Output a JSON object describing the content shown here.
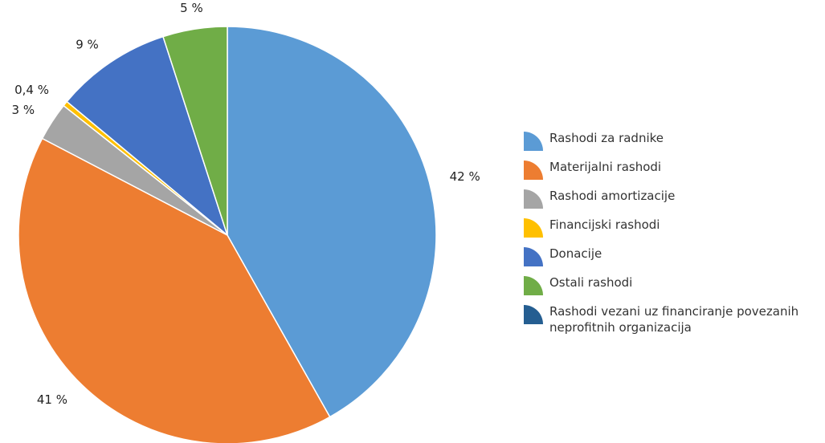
{
  "chart_data": {
    "type": "pie",
    "categories": [
      "Rashodi za radnike",
      "Materijalni rashodi",
      "Rashodi amortizacije",
      "Financijski rashodi",
      "Donacije",
      "Ostali rashodi",
      "Rashodi vezani uz financiranje povezanih neprofitnih organizacija"
    ],
    "values": [
      42,
      41,
      3,
      0.4,
      9,
      5,
      0
    ],
    "value_labels": [
      "42 %",
      "41 %",
      "3 %",
      "0,4 %",
      "9 %",
      "5 %",
      null
    ],
    "colors": [
      "#5b9bd5",
      "#ed7d31",
      "#a5a5a5",
      "#ffc000",
      "#4472c4",
      "#70ad47",
      "#255e91"
    ],
    "legend": "right"
  }
}
